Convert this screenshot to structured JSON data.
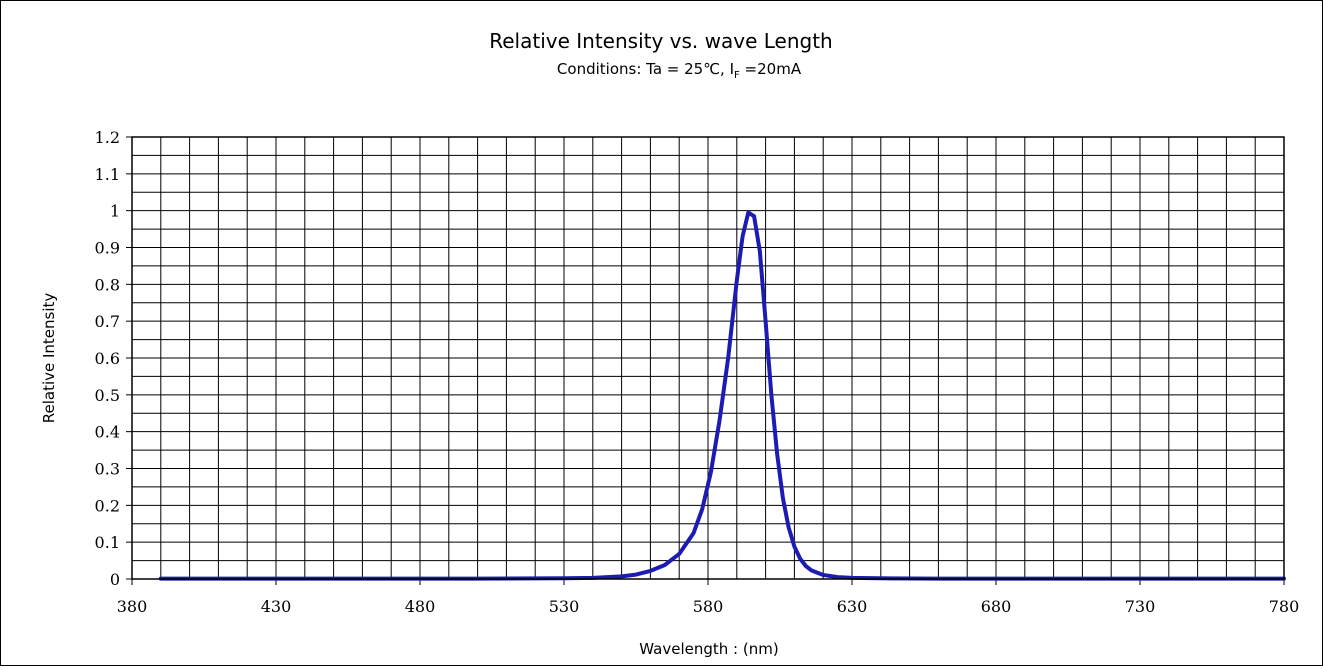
{
  "chart_data": {
    "type": "line",
    "title": "Relative Intensity vs. wave Length",
    "subtitle": {
      "prefix": "Conditions: Ta = 25℃, I",
      "subscript": "F",
      "suffix": " =20mA"
    },
    "xlabel": "Wavelength : (nm)",
    "ylabel": "Relative Intensity",
    "xlim": [
      380,
      780
    ],
    "ylim": [
      0,
      1.2
    ],
    "x_ticks": [
      380,
      430,
      480,
      530,
      580,
      630,
      680,
      730,
      780
    ],
    "y_ticks": [
      0,
      0.1,
      0.2,
      0.3,
      0.4,
      0.5,
      0.6,
      0.7,
      0.8,
      0.9,
      1,
      1.1,
      1.2
    ],
    "x_tick_labels": [
      "380",
      "430",
      "480",
      "530",
      "580",
      "630",
      "680",
      "730",
      "780"
    ],
    "y_tick_labels": [
      "0",
      "0.1",
      "0.2",
      "0.3",
      "0.4",
      "0.5",
      "0.6",
      "0.7",
      "0.8",
      "0.9",
      "1",
      "1.1",
      "1.2"
    ],
    "grid": true,
    "series_color": "#1c1cb4",
    "series": [
      {
        "x": [
          390,
          450,
          500,
          530,
          540,
          550,
          555,
          560,
          565,
          570,
          575,
          578,
          581,
          584,
          587,
          590,
          592,
          594,
          596,
          598,
          600,
          602,
          604,
          606,
          608,
          610,
          612,
          614,
          616,
          620,
          625,
          630,
          640,
          660,
          700,
          780
        ],
        "values": [
          0.001,
          0.001,
          0.001,
          0.002,
          0.003,
          0.007,
          0.012,
          0.022,
          0.038,
          0.068,
          0.125,
          0.19,
          0.29,
          0.43,
          0.6,
          0.81,
          0.93,
          0.995,
          0.985,
          0.89,
          0.7,
          0.5,
          0.34,
          0.22,
          0.14,
          0.088,
          0.055,
          0.035,
          0.023,
          0.011,
          0.005,
          0.003,
          0.002,
          0.001,
          0.001,
          0.001
        ]
      }
    ]
  }
}
